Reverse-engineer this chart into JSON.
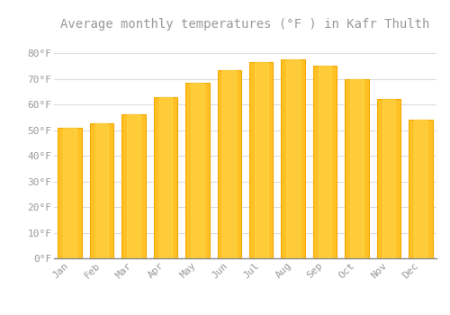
{
  "title": "Average monthly temperatures (°F ) in Kafr Thulth",
  "months": [
    "Jan",
    "Feb",
    "Mar",
    "Apr",
    "May",
    "Jun",
    "Jul",
    "Aug",
    "Sep",
    "Oct",
    "Nov",
    "Dec"
  ],
  "values": [
    51,
    52.5,
    56,
    63,
    68.5,
    73.5,
    76.5,
    77.5,
    75,
    70,
    62,
    54
  ],
  "bar_color_main": "#FFC125",
  "bar_color_left": "#F5A800",
  "bar_color_right": "#F5A800",
  "background_color": "#FFFFFF",
  "grid_color": "#DDDDDD",
  "text_color": "#999999",
  "ylim": [
    0,
    86
  ],
  "yticks": [
    0,
    10,
    20,
    30,
    40,
    50,
    60,
    70,
    80
  ],
  "ytick_labels": [
    "0°F",
    "10°F",
    "20°F",
    "30°F",
    "40°F",
    "50°F",
    "60°F",
    "70°F",
    "80°F"
  ],
  "title_fontsize": 10,
  "tick_fontsize": 8
}
